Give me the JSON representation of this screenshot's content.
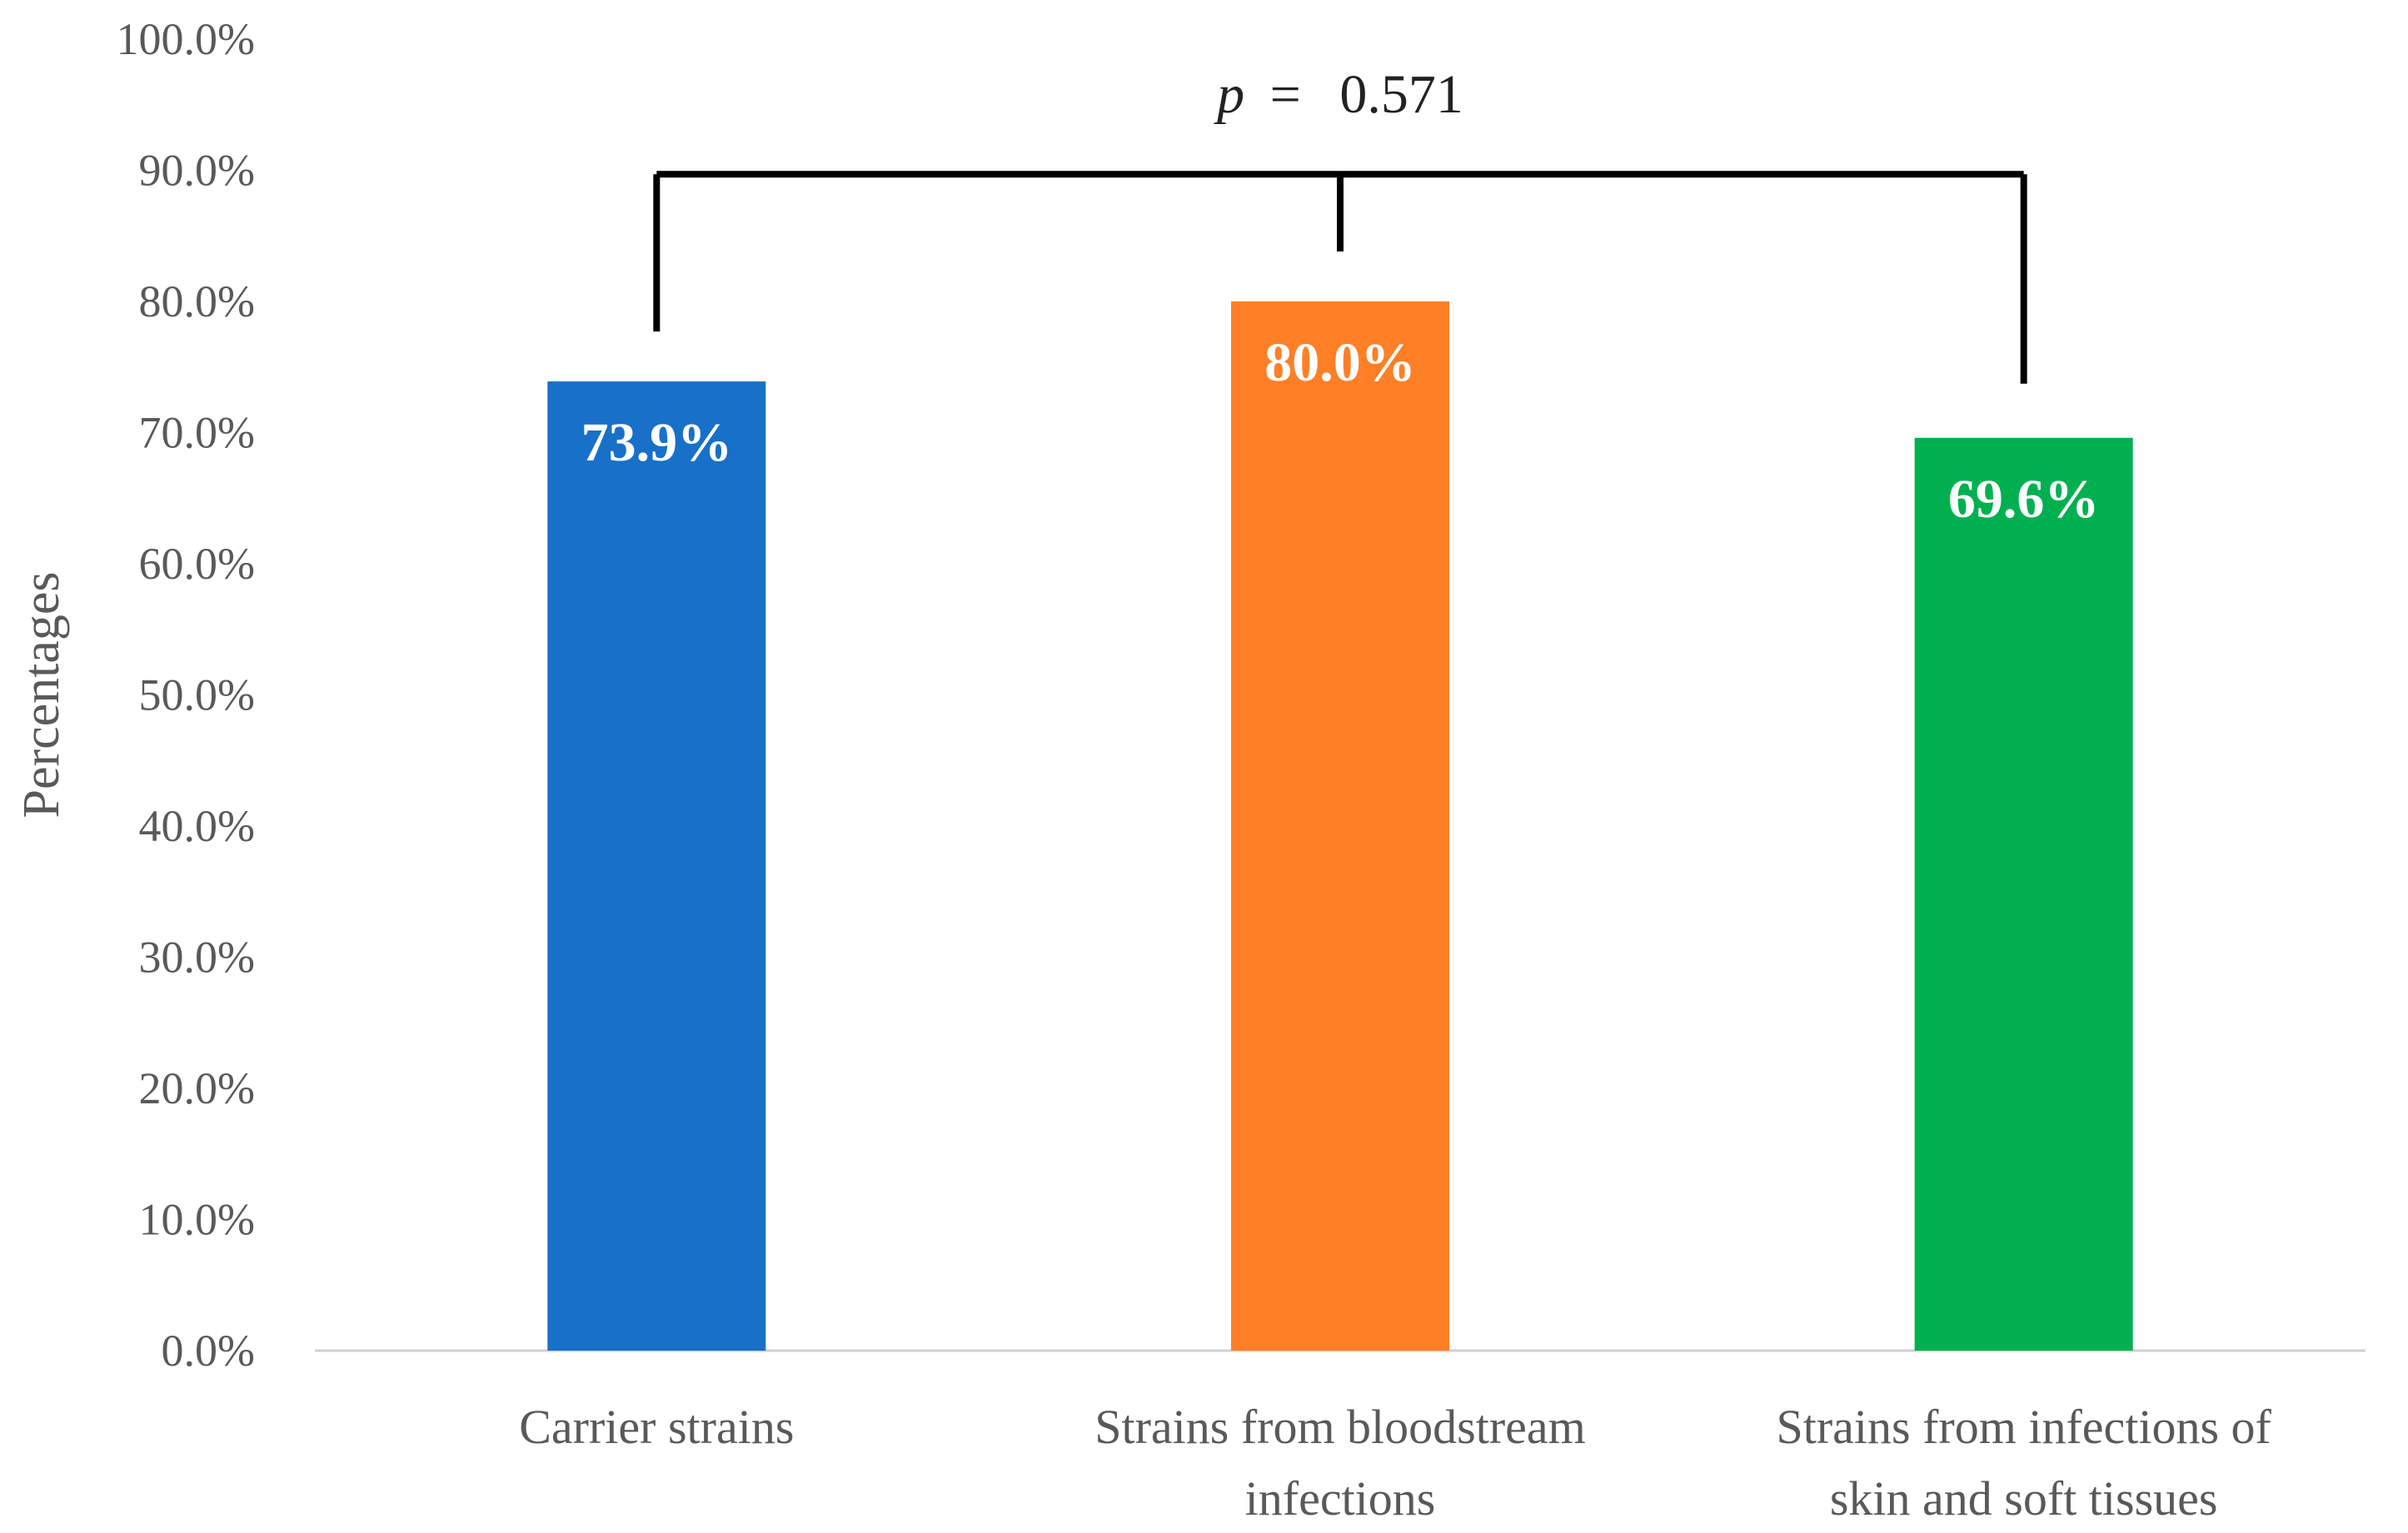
{
  "chart_data": {
    "type": "bar",
    "categories": [
      [
        "Carrier strains"
      ],
      [
        "Strains from bloodstream",
        "infections"
      ],
      [
        "Strains from infections of",
        "skin and soft tissues"
      ]
    ],
    "values": [
      73.9,
      80.0,
      69.6
    ],
    "data_labels": [
      "73.9%",
      "80.0%",
      "69.6%"
    ],
    "colors": [
      "#1870C8",
      "#FF7F27",
      "#00B050"
    ],
    "ylabel": "Percentages",
    "ylim": [
      0,
      100
    ],
    "yticks": [
      "0.0%",
      "10.0%",
      "20.0%",
      "30.0%",
      "40.0%",
      "50.0%",
      "60.0%",
      "70.0%",
      "80.0%",
      "90.0%",
      "100.0%"
    ],
    "grid": false,
    "legend": "none",
    "annotation": {
      "p_symbol": "p",
      "p_equals": "=",
      "p_value": "0.571",
      "bracket_spans": "all three bars"
    }
  }
}
